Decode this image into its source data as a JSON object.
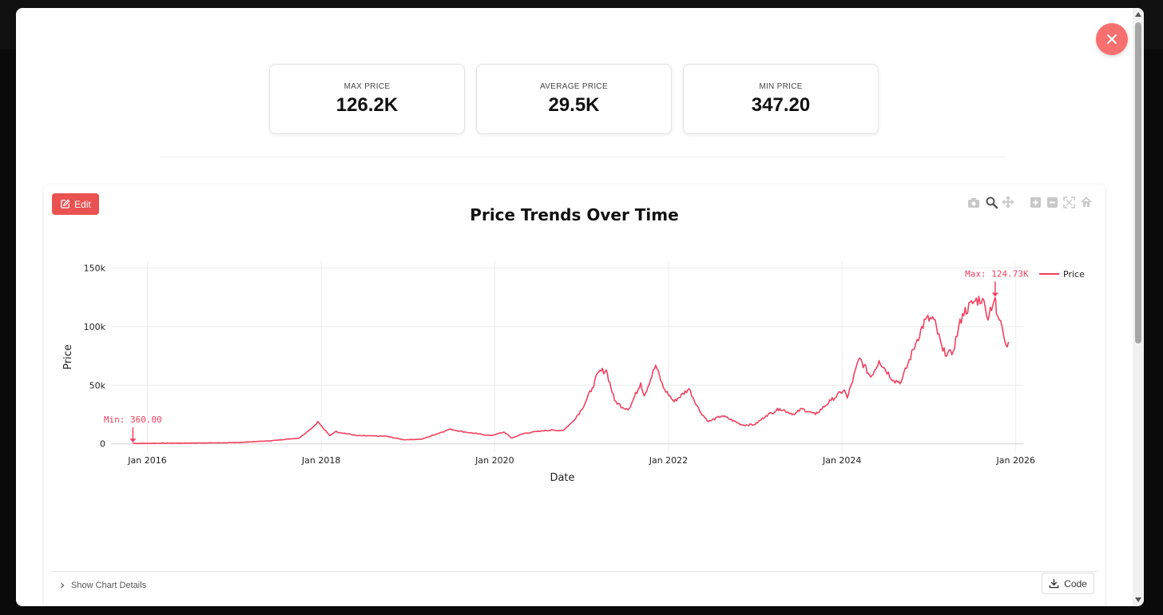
{
  "stats": [
    {
      "label": "MAX PRICE",
      "value": "126.2K"
    },
    {
      "label": "AVERAGE PRICE",
      "value": "29.5K"
    },
    {
      "label": "MIN PRICE",
      "value": "347.20"
    }
  ],
  "toolbar": {
    "edit_label": "Edit",
    "code_label": "Code",
    "details_label": "Show Chart Details",
    "modebar_icons": [
      "camera-icon",
      "zoom-icon",
      "pan-icon",
      "zoom-in-icon",
      "zoom-out-icon",
      "autoscale-icon",
      "reset-axes-icon"
    ]
  },
  "colors": {
    "series": "#f2405e",
    "close_button": "#f76f6f",
    "edit_button": "#ea5151"
  },
  "chart_data": {
    "type": "line",
    "title": "Price Trends Over Time",
    "xlabel": "Date",
    "ylabel": "Price",
    "xlim": [
      "2015-08-01",
      "2026-02-01"
    ],
    "ylim": [
      -7000,
      155000
    ],
    "x_ticks": [
      "Jan 2016",
      "Jan 2018",
      "Jan 2020",
      "Jan 2022",
      "Jan 2024",
      "Jan 2026"
    ],
    "x_tick_dates": [
      "2016-01-01",
      "2018-01-01",
      "2020-01-01",
      "2022-01-01",
      "2024-01-01",
      "2026-01-01"
    ],
    "y_ticks": [
      0,
      50000,
      100000,
      150000
    ],
    "y_tick_labels": [
      "0",
      "50k",
      "100k",
      "150k"
    ],
    "grid": true,
    "legend": {
      "position": "top-right"
    },
    "series": [
      {
        "name": "Price",
        "points": [
          [
            "2015-11-01",
            360
          ],
          [
            "2016-06-01",
            650
          ],
          [
            "2017-01-01",
            1000
          ],
          [
            "2017-06-01",
            2600
          ],
          [
            "2017-10-01",
            5000
          ],
          [
            "2017-12-01",
            15000
          ],
          [
            "2017-12-17",
            19000
          ],
          [
            "2018-01-15",
            12000
          ],
          [
            "2018-02-06",
            7000
          ],
          [
            "2018-03-01",
            10500
          ],
          [
            "2018-06-01",
            7000
          ],
          [
            "2018-10-01",
            6500
          ],
          [
            "2018-12-15",
            3500
          ],
          [
            "2019-03-01",
            4000
          ],
          [
            "2019-06-26",
            12500
          ],
          [
            "2019-09-01",
            10000
          ],
          [
            "2019-12-15",
            7000
          ],
          [
            "2020-02-10",
            10000
          ],
          [
            "2020-03-12",
            4900
          ],
          [
            "2020-05-01",
            8800
          ],
          [
            "2020-08-01",
            11500
          ],
          [
            "2020-10-15",
            11500
          ],
          [
            "2020-11-20",
            18000
          ],
          [
            "2020-12-31",
            29000
          ],
          [
            "2021-02-15",
            48000
          ],
          [
            "2021-03-13",
            61000
          ],
          [
            "2021-04-14",
            63000
          ],
          [
            "2021-05-19",
            37000
          ],
          [
            "2021-06-22",
            31000
          ],
          [
            "2021-07-20",
            30000
          ],
          [
            "2021-09-06",
            52000
          ],
          [
            "2021-09-21",
            41000
          ],
          [
            "2021-11-08",
            67000
          ],
          [
            "2021-12-10",
            48000
          ],
          [
            "2022-01-24",
            36000
          ],
          [
            "2022-03-28",
            47000
          ],
          [
            "2022-05-12",
            28000
          ],
          [
            "2022-06-18",
            18900
          ],
          [
            "2022-08-15",
            24000
          ],
          [
            "2022-11-09",
            16000
          ],
          [
            "2022-12-31",
            16500
          ],
          [
            "2023-02-15",
            24000
          ],
          [
            "2023-04-14",
            30000
          ],
          [
            "2023-06-15",
            25000
          ],
          [
            "2023-07-15",
            30000
          ],
          [
            "2023-09-11",
            25000
          ],
          [
            "2023-11-15",
            37000
          ],
          [
            "2024-01-10",
            46000
          ],
          [
            "2024-01-23",
            39000
          ],
          [
            "2024-03-14",
            73000
          ],
          [
            "2024-05-01",
            57000
          ],
          [
            "2024-06-05",
            71000
          ],
          [
            "2024-08-05",
            54000
          ],
          [
            "2024-09-06",
            53000
          ],
          [
            "2024-11-12",
            89000
          ],
          [
            "2024-12-17",
            106000
          ],
          [
            "2025-01-21",
            106000
          ],
          [
            "2025-02-28",
            79000
          ],
          [
            "2025-04-07",
            76000
          ],
          [
            "2025-05-22",
            111000
          ],
          [
            "2025-07-14",
            122000
          ],
          [
            "2025-08-14",
            124000
          ],
          [
            "2025-09-01",
            108000
          ],
          [
            "2025-10-06",
            124730
          ],
          [
            "2025-10-11",
            111000
          ],
          [
            "2025-11-04",
            100000
          ],
          [
            "2025-11-21",
            84000
          ],
          [
            "2025-12-01",
            87000
          ]
        ]
      }
    ],
    "annotations": [
      {
        "text": "Min: 360.00",
        "x": "2015-11-01",
        "y": 360
      },
      {
        "text": "Max: 124.73K",
        "x": "2025-10-06",
        "y": 124730
      }
    ]
  }
}
